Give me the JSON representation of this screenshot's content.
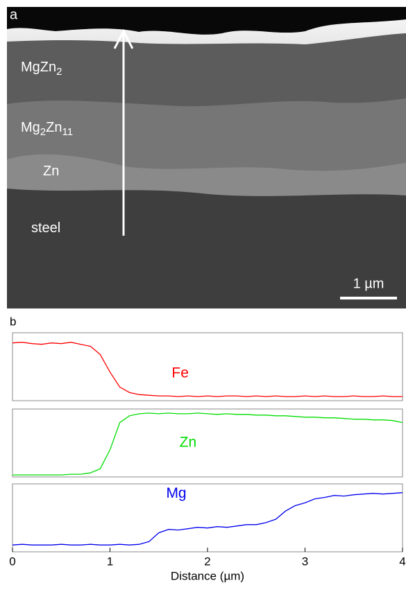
{
  "image_panel": {
    "panel_label": "a",
    "layers": [
      {
        "parts": [
          "MgZn",
          "2"
        ]
      },
      {
        "parts": [
          "Mg",
          "2",
          "Zn",
          "11"
        ]
      },
      {
        "parts": [
          "Zn"
        ]
      },
      {
        "parts": [
          "steel"
        ]
      }
    ],
    "scale_bar": "1 µm"
  },
  "chart_data": {
    "type": "line",
    "panel_label": "b",
    "xlabel": "Distance (µm)",
    "xlim": [
      0,
      4
    ],
    "xticks": [
      0,
      1,
      2,
      3,
      4
    ],
    "ylim": [
      0,
      1
    ],
    "x": [
      0,
      0.1,
      0.2,
      0.3,
      0.4,
      0.5,
      0.6,
      0.7,
      0.8,
      0.9,
      1,
      1.1,
      1.2,
      1.3,
      1.4,
      1.5,
      1.6,
      1.7,
      1.8,
      1.9,
      2,
      2.1,
      2.2,
      2.3,
      2.4,
      2.5,
      2.6,
      2.7,
      2.8,
      2.9,
      3,
      3.1,
      3.2,
      3.3,
      3.4,
      3.5,
      3.6,
      3.7,
      3.8,
      3.9,
      4
    ],
    "series": [
      {
        "name": "Fe",
        "color": "#ff0000",
        "values": [
          0.85,
          0.86,
          0.84,
          0.83,
          0.85,
          0.84,
          0.86,
          0.83,
          0.8,
          0.68,
          0.42,
          0.2,
          0.12,
          0.09,
          0.08,
          0.07,
          0.07,
          0.06,
          0.07,
          0.06,
          0.07,
          0.06,
          0.07,
          0.07,
          0.06,
          0.07,
          0.06,
          0.07,
          0.06,
          0.06,
          0.07,
          0.06,
          0.07,
          0.06,
          0.06,
          0.07,
          0.06,
          0.06,
          0.07,
          0.06,
          0.06
        ]
      },
      {
        "name": "Zn",
        "color": "#00dd00",
        "values": [
          0.03,
          0.03,
          0.03,
          0.03,
          0.03,
          0.03,
          0.04,
          0.04,
          0.06,
          0.12,
          0.4,
          0.8,
          0.9,
          0.93,
          0.94,
          0.93,
          0.94,
          0.93,
          0.93,
          0.94,
          0.93,
          0.92,
          0.93,
          0.92,
          0.92,
          0.91,
          0.91,
          0.9,
          0.9,
          0.89,
          0.88,
          0.88,
          0.87,
          0.87,
          0.86,
          0.85,
          0.85,
          0.84,
          0.84,
          0.83,
          0.8
        ]
      },
      {
        "name": "Mg",
        "color": "#0000ee",
        "values": [
          0.1,
          0.11,
          0.1,
          0.1,
          0.1,
          0.11,
          0.1,
          0.1,
          0.11,
          0.1,
          0.1,
          0.11,
          0.1,
          0.11,
          0.15,
          0.28,
          0.33,
          0.32,
          0.34,
          0.36,
          0.35,
          0.37,
          0.36,
          0.38,
          0.4,
          0.4,
          0.43,
          0.48,
          0.6,
          0.68,
          0.72,
          0.78,
          0.8,
          0.83,
          0.82,
          0.84,
          0.85,
          0.86,
          0.85,
          0.86,
          0.87
        ]
      }
    ]
  }
}
